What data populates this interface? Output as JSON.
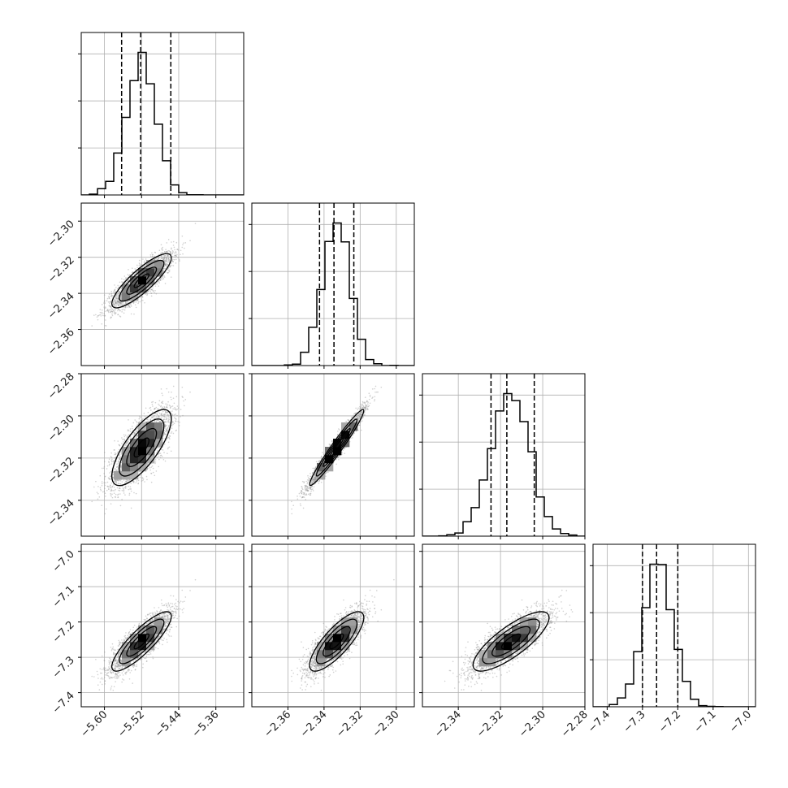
{
  "chart_data": {
    "type": "corner",
    "title": "",
    "parameters": [
      {
        "label": "",
        "mean": -5.52,
        "sd": 0.032,
        "quantiles": [
          -5.563,
          -5.522,
          -5.457
        ]
      },
      {
        "label": "",
        "mean": -2.333,
        "sd": 0.0075,
        "quantiles": [
          -2.3425,
          -2.3345,
          -2.3235
        ]
      },
      {
        "label": "",
        "mean": -2.315,
        "sd": 0.009,
        "quantiles": [
          -2.3245,
          -2.317,
          -2.304
        ]
      },
      {
        "label": "",
        "mean": -7.255,
        "sd": 0.042,
        "quantiles": [
          -7.3,
          -7.26,
          -7.2
        ]
      }
    ],
    "correlations": {
      "0_1": 0.85,
      "0_2": 0.75,
      "0_3": 0.85,
      "1_2": 0.97,
      "1_3": 0.8,
      "2_3": 0.8
    },
    "axis_ranges": [
      [
        -5.65,
        -5.3
      ],
      [
        -2.38,
        -2.29
      ],
      [
        -2.357,
        -2.28
      ],
      [
        -7.44,
        -6.98
      ]
    ],
    "hist_ylim": [
      0,
      1.14
    ],
    "ticks": [
      {
        "values": [
          -5.6,
          -5.52,
          -5.44,
          -5.36
        ],
        "labels": [
          "−5.60",
          "−5.52",
          "−5.44",
          "−5.36"
        ]
      },
      {
        "values": [
          -2.36,
          -2.34,
          -2.32,
          -2.3
        ],
        "labels": [
          "−2.36",
          "−2.34",
          "−2.32",
          "−2.30"
        ]
      },
      {
        "values": [
          -2.34,
          -2.32,
          -2.3,
          -2.28
        ],
        "labels": [
          "−2.34",
          "−2.32",
          "−2.30",
          "−2.28"
        ]
      },
      {
        "values": [
          -7.4,
          -7.3,
          -7.2,
          -7.1,
          -7.0
        ],
        "labels": [
          "−7.4",
          "−7.3",
          "−7.2",
          "−7.1",
          "−7.0"
        ]
      }
    ],
    "hist_yticks": [
      0.33,
      0.66,
      0.99
    ],
    "grid": true,
    "colors": {
      "line": "#000000",
      "scatter": "#9a9a9a",
      "grid": "#b0b0b0",
      "frame": "#000000"
    }
  }
}
